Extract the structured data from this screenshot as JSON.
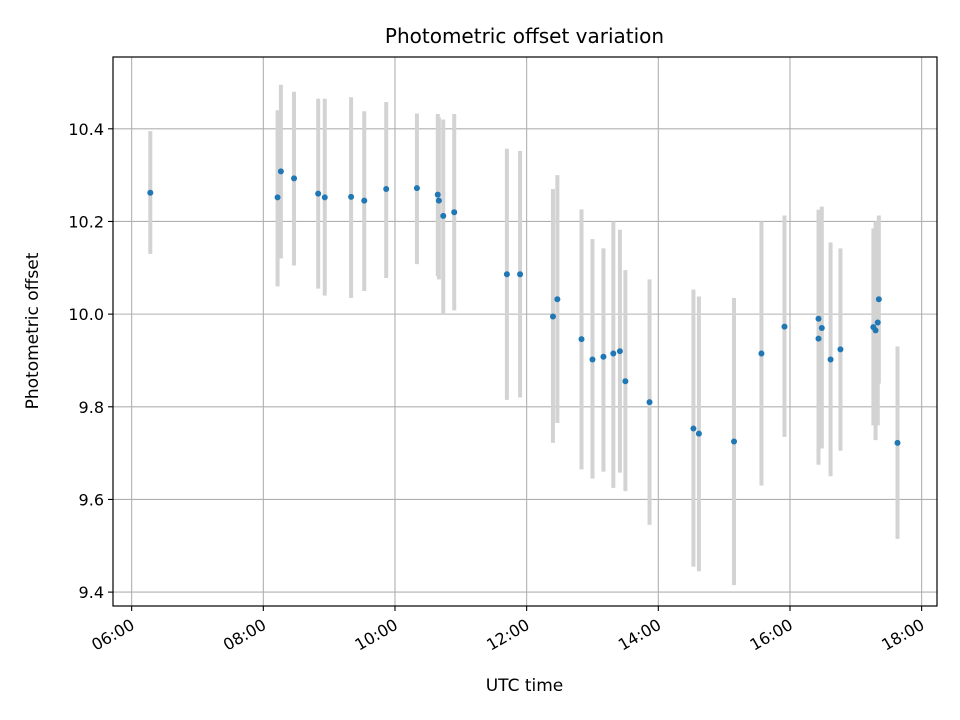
{
  "chart_data": {
    "type": "scatter",
    "title": "Photometric offset variation",
    "xlabel": "UTC time",
    "ylabel": "Photometric offset",
    "x_ticks": [
      "06:00",
      "08:00",
      "10:00",
      "12:00",
      "14:00",
      "16:00",
      "18:00"
    ],
    "y_ticks": [
      "9.4",
      "9.6",
      "9.8",
      "10.0",
      "10.2",
      "10.4"
    ],
    "xlim": [
      "05:43",
      "18:14"
    ],
    "ylim": [
      9.37,
      10.555
    ],
    "grid": true,
    "colors": {
      "points": "#1f77b4",
      "errorbars": "#d3d3d3",
      "grid": "#b0b0b0"
    },
    "points": [
      {
        "t": "06:17",
        "y": 10.262,
        "lo": 10.13,
        "hi": 10.395
      },
      {
        "t": "08:13",
        "y": 10.252,
        "lo": 10.06,
        "hi": 10.44
      },
      {
        "t": "08:16",
        "y": 10.308,
        "lo": 10.12,
        "hi": 10.495
      },
      {
        "t": "08:28",
        "y": 10.293,
        "lo": 10.105,
        "hi": 10.48
      },
      {
        "t": "08:50",
        "y": 10.26,
        "lo": 10.055,
        "hi": 10.465
      },
      {
        "t": "08:56",
        "y": 10.252,
        "lo": 10.04,
        "hi": 10.465
      },
      {
        "t": "09:20",
        "y": 10.253,
        "lo": 10.035,
        "hi": 10.468
      },
      {
        "t": "09:32",
        "y": 10.245,
        "lo": 10.05,
        "hi": 10.438
      },
      {
        "t": "09:52",
        "y": 10.27,
        "lo": 10.078,
        "hi": 10.458
      },
      {
        "t": "10:20",
        "y": 10.272,
        "lo": 10.108,
        "hi": 10.433
      },
      {
        "t": "10:39",
        "y": 10.258,
        "lo": 10.082,
        "hi": 10.432
      },
      {
        "t": "10:40",
        "y": 10.245,
        "lo": 10.075,
        "hi": 10.425
      },
      {
        "t": "10:44",
        "y": 10.212,
        "lo": 10.0,
        "hi": 10.42
      },
      {
        "t": "10:54",
        "y": 10.22,
        "lo": 10.008,
        "hi": 10.432
      },
      {
        "t": "11:42",
        "y": 10.086,
        "lo": 9.815,
        "hi": 10.357
      },
      {
        "t": "11:54",
        "y": 10.086,
        "lo": 9.82,
        "hi": 10.352
      },
      {
        "t": "12:24",
        "y": 9.995,
        "lo": 9.722,
        "hi": 10.27
      },
      {
        "t": "12:28",
        "y": 10.032,
        "lo": 9.765,
        "hi": 10.3
      },
      {
        "t": "12:50",
        "y": 9.946,
        "lo": 9.665,
        "hi": 10.226
      },
      {
        "t": "13:00",
        "y": 9.902,
        "lo": 9.645,
        "hi": 10.162
      },
      {
        "t": "13:10",
        "y": 9.908,
        "lo": 9.66,
        "hi": 10.142
      },
      {
        "t": "13:19",
        "y": 9.915,
        "lo": 9.625,
        "hi": 10.2
      },
      {
        "t": "13:25",
        "y": 9.92,
        "lo": 9.658,
        "hi": 10.182
      },
      {
        "t": "13:30",
        "y": 9.855,
        "lo": 9.618,
        "hi": 10.095
      },
      {
        "t": "13:52",
        "y": 9.81,
        "lo": 9.545,
        "hi": 10.075
      },
      {
        "t": "14:32",
        "y": 9.753,
        "lo": 9.455,
        "hi": 10.053
      },
      {
        "t": "14:37",
        "y": 9.742,
        "lo": 9.445,
        "hi": 10.038
      },
      {
        "t": "15:09",
        "y": 9.725,
        "lo": 9.415,
        "hi": 10.035
      },
      {
        "t": "15:34",
        "y": 9.915,
        "lo": 9.63,
        "hi": 10.2
      },
      {
        "t": "15:55",
        "y": 9.973,
        "lo": 9.735,
        "hi": 10.213
      },
      {
        "t": "16:26",
        "y": 9.99,
        "lo": 9.758,
        "hi": 10.225
      },
      {
        "t": "16:26",
        "y": 9.947,
        "lo": 9.675,
        "hi": 10.225
      },
      {
        "t": "16:29",
        "y": 9.97,
        "lo": 9.71,
        "hi": 10.232
      },
      {
        "t": "16:37",
        "y": 9.902,
        "lo": 9.65,
        "hi": 10.155
      },
      {
        "t": "16:46",
        "y": 9.924,
        "lo": 9.705,
        "hi": 10.142
      },
      {
        "t": "17:16",
        "y": 9.972,
        "lo": 9.76,
        "hi": 10.185
      },
      {
        "t": "17:18",
        "y": 9.965,
        "lo": 9.728,
        "hi": 10.2
      },
      {
        "t": "17:20",
        "y": 9.982,
        "lo": 9.76,
        "hi": 10.2
      },
      {
        "t": "17:21",
        "y": 10.032,
        "lo": 9.85,
        "hi": 10.213
      },
      {
        "t": "17:38",
        "y": 9.722,
        "lo": 9.515,
        "hi": 9.93
      }
    ]
  }
}
